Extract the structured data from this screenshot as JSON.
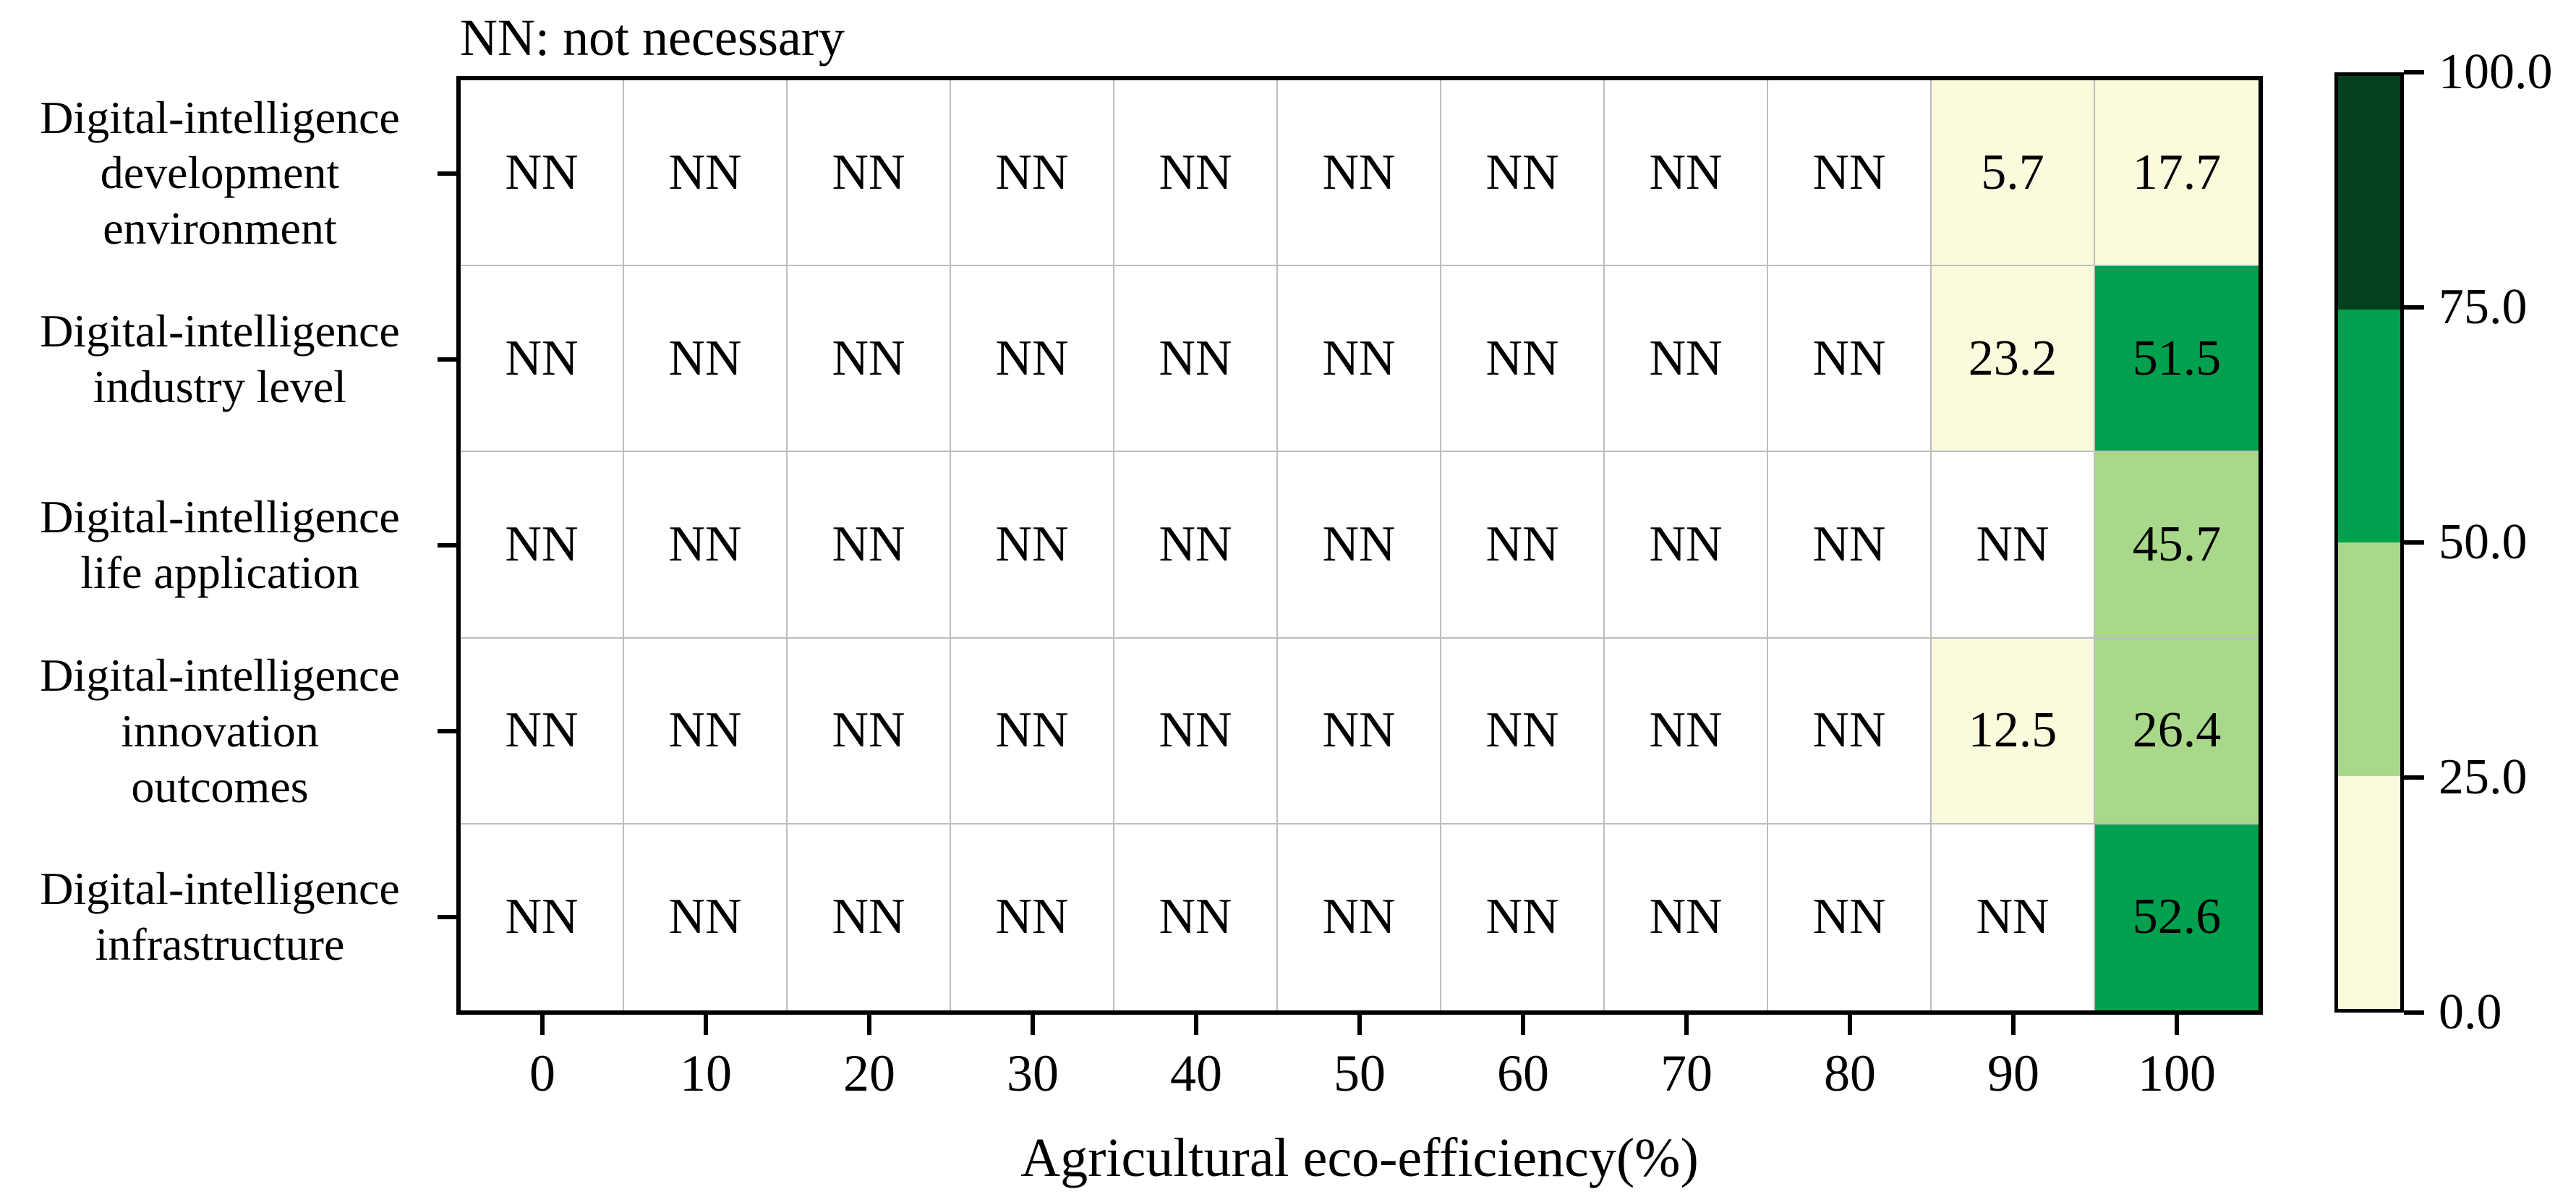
{
  "annotation": "NN: not necessary",
  "chart_data": {
    "type": "heatmap",
    "title": "",
    "xlabel": "Agricultural eco-efficiency(%)",
    "ylabel": "",
    "x_ticks": [
      "0",
      "10",
      "20",
      "30",
      "40",
      "50",
      "60",
      "70",
      "80",
      "90",
      "100"
    ],
    "y_categories": [
      {
        "label": "Digital-intelligence development environment",
        "lines": [
          "Digital-intelligence",
          "development",
          "environment"
        ]
      },
      {
        "label": "Digital-intelligence industry level",
        "lines": [
          "Digital-intelligence",
          "industry level"
        ]
      },
      {
        "label": "Digital-intelligence life application",
        "lines": [
          "Digital-intelligence",
          "life application"
        ]
      },
      {
        "label": "Digital-intelligence innovation outcomes",
        "lines": [
          "Digital-intelligence",
          "innovation",
          "outcomes"
        ]
      },
      {
        "label": "Digital-intelligence infrastructure",
        "lines": [
          "Digital-intelligence",
          "infrastructure"
        ]
      }
    ],
    "rows": [
      [
        "NN",
        "NN",
        "NN",
        "NN",
        "NN",
        "NN",
        "NN",
        "NN",
        "NN",
        "5.7",
        "17.7"
      ],
      [
        "NN",
        "NN",
        "NN",
        "NN",
        "NN",
        "NN",
        "NN",
        "NN",
        "NN",
        "23.2",
        "51.5"
      ],
      [
        "NN",
        "NN",
        "NN",
        "NN",
        "NN",
        "NN",
        "NN",
        "NN",
        "NN",
        "NN",
        "45.7"
      ],
      [
        "NN",
        "NN",
        "NN",
        "NN",
        "NN",
        "NN",
        "NN",
        "NN",
        "NN",
        "12.5",
        "26.4"
      ],
      [
        "NN",
        "NN",
        "NN",
        "NN",
        "NN",
        "NN",
        "NN",
        "NN",
        "NN",
        "NN",
        "52.6"
      ]
    ],
    "no_data_label": "NN",
    "value_range": [
      0,
      100
    ],
    "grid": true,
    "legend_position": "right",
    "colorbar": {
      "tick_labels_top_to_bottom": [
        "100.0",
        "75.0",
        "50.0",
        "25.0",
        "0.0"
      ],
      "band_thresholds": [
        25,
        50,
        75
      ],
      "bands_top_to_bottom": [
        "#05401e",
        "#00a04e",
        "#a9d88b",
        "#fbfadd"
      ]
    },
    "colors": {
      "no_data_cell": "#ffffff",
      "gridline": "#bdbdbd",
      "band_0_25": "#fbfadd",
      "band_25_50": "#a9d88b",
      "band_50_75": "#00a04e",
      "band_75_100": "#05401e",
      "text": "#000000",
      "axis": "#000000"
    }
  }
}
